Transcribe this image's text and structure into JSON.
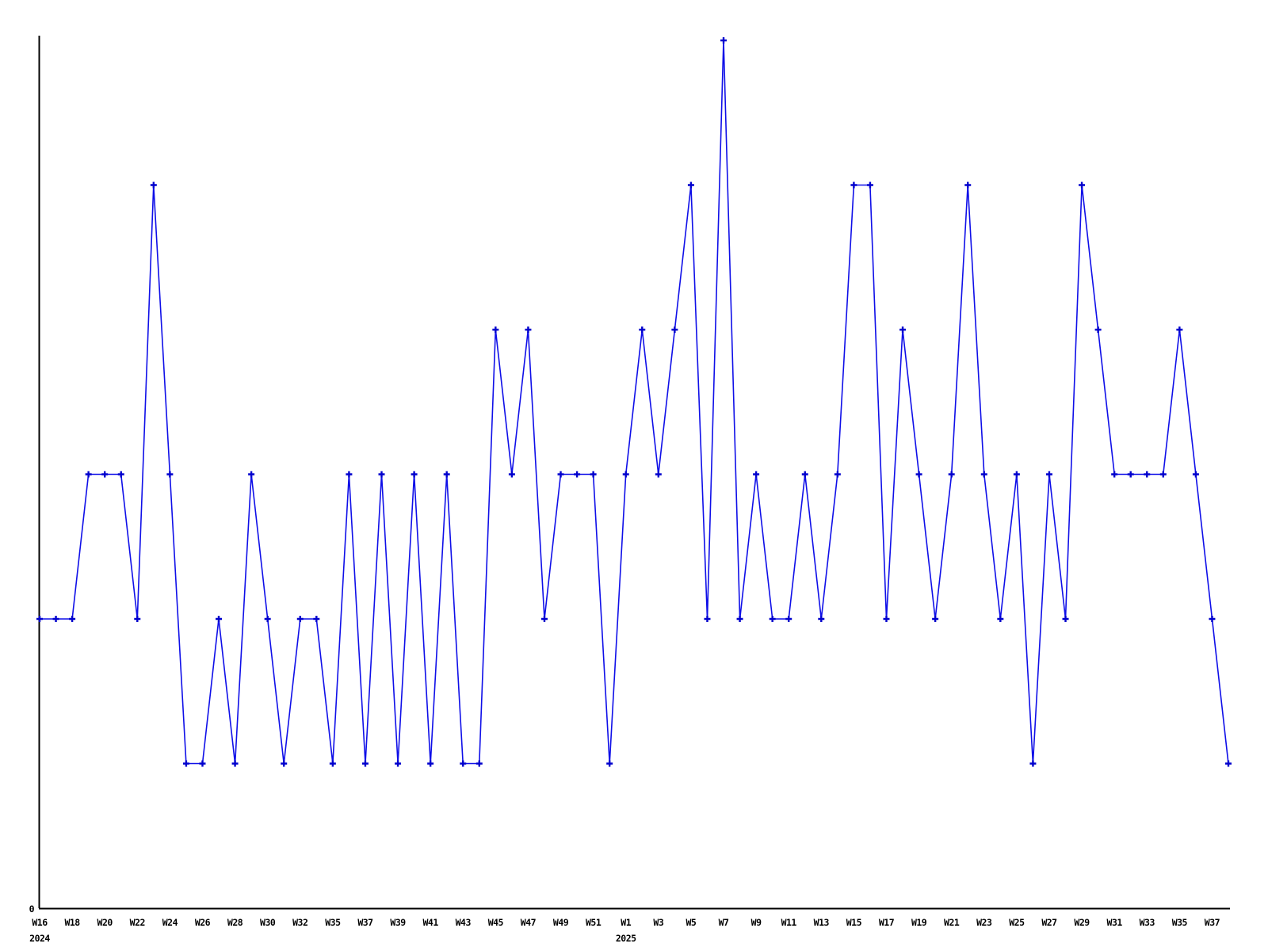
{
  "chart_data": {
    "type": "line",
    "title": "",
    "legend": [],
    "grid": false,
    "background_color": "#ffffff",
    "line_color": "#0f0fe8",
    "marker_color": "#0000cd",
    "marker_style": "plus",
    "axis_color": "#000000",
    "label_color": "#000000",
    "y_axis": {
      "ticks": [
        "0"
      ],
      "origin_label": "0",
      "ylim": [
        0,
        6.1
      ]
    },
    "x_axis": {
      "tick_every_n_points": 2,
      "tick_labels": [
        "W16",
        "W18",
        "W20",
        "W22",
        "W24",
        "W26",
        "W28",
        "W30",
        "W32",
        "W35",
        "W37",
        "W39",
        "W41",
        "W43",
        "W45",
        "W47",
        "W49",
        "W51",
        "W1",
        "W3",
        "W5",
        "W7",
        "W9",
        "W11",
        "W13",
        "W15",
        "W17",
        "W19",
        "W21",
        "W23",
        "W25",
        "W27",
        "W29",
        "W31",
        "W33",
        "W35",
        "W37"
      ],
      "year_labels": [
        {
          "label": "2024",
          "point_index": 0
        },
        {
          "label": "2025",
          "point_index": 36
        }
      ]
    },
    "series": [
      {
        "name": "weekly-count",
        "points": [
          {
            "year": 2024,
            "week": "W16",
            "value": 2
          },
          {
            "year": 2024,
            "week": "W17",
            "value": 2
          },
          {
            "year": 2024,
            "week": "W18",
            "value": 2
          },
          {
            "year": 2024,
            "week": "W19",
            "value": 3
          },
          {
            "year": 2024,
            "week": "W20",
            "value": 3
          },
          {
            "year": 2024,
            "week": "W21",
            "value": 3
          },
          {
            "year": 2024,
            "week": "W22",
            "value": 2
          },
          {
            "year": 2024,
            "week": "W23",
            "value": 5
          },
          {
            "year": 2024,
            "week": "W24",
            "value": 3
          },
          {
            "year": 2024,
            "week": "W25",
            "value": 1
          },
          {
            "year": 2024,
            "week": "W26",
            "value": 1
          },
          {
            "year": 2024,
            "week": "W27",
            "value": 2
          },
          {
            "year": 2024,
            "week": "W28",
            "value": 1
          },
          {
            "year": 2024,
            "week": "W29",
            "value": 3
          },
          {
            "year": 2024,
            "week": "W30",
            "value": 2
          },
          {
            "year": 2024,
            "week": "W31",
            "value": 1
          },
          {
            "year": 2024,
            "week": "W32",
            "value": 2
          },
          {
            "year": 2024,
            "week": "W33",
            "value": 2
          },
          {
            "year": 2024,
            "week": "W35",
            "value": 1
          },
          {
            "year": 2024,
            "week": "W36",
            "value": 3
          },
          {
            "year": 2024,
            "week": "W37",
            "value": 1
          },
          {
            "year": 2024,
            "week": "W38",
            "value": 3
          },
          {
            "year": 2024,
            "week": "W39",
            "value": 1
          },
          {
            "year": 2024,
            "week": "W40",
            "value": 3
          },
          {
            "year": 2024,
            "week": "W41",
            "value": 1
          },
          {
            "year": 2024,
            "week": "W42",
            "value": 3
          },
          {
            "year": 2024,
            "week": "W43",
            "value": 1
          },
          {
            "year": 2024,
            "week": "W44",
            "value": 1
          },
          {
            "year": 2024,
            "week": "W45",
            "value": 4
          },
          {
            "year": 2024,
            "week": "W46",
            "value": 3
          },
          {
            "year": 2024,
            "week": "W47",
            "value": 4
          },
          {
            "year": 2024,
            "week": "W48",
            "value": 2
          },
          {
            "year": 2024,
            "week": "W49",
            "value": 3
          },
          {
            "year": 2024,
            "week": "W50",
            "value": 3
          },
          {
            "year": 2024,
            "week": "W51",
            "value": 3
          },
          {
            "year": 2024,
            "week": "W52",
            "value": 1
          },
          {
            "year": 2025,
            "week": "W1",
            "value": 3
          },
          {
            "year": 2025,
            "week": "W2",
            "value": 4
          },
          {
            "year": 2025,
            "week": "W3",
            "value": 3
          },
          {
            "year": 2025,
            "week": "W4",
            "value": 4
          },
          {
            "year": 2025,
            "week": "W5",
            "value": 5
          },
          {
            "year": 2025,
            "week": "W6",
            "value": 2
          },
          {
            "year": 2025,
            "week": "W7",
            "value": 6
          },
          {
            "year": 2025,
            "week": "W8",
            "value": 2
          },
          {
            "year": 2025,
            "week": "W9",
            "value": 3
          },
          {
            "year": 2025,
            "week": "W10",
            "value": 2
          },
          {
            "year": 2025,
            "week": "W11",
            "value": 2
          },
          {
            "year": 2025,
            "week": "W12",
            "value": 3
          },
          {
            "year": 2025,
            "week": "W13",
            "value": 2
          },
          {
            "year": 2025,
            "week": "W14",
            "value": 3
          },
          {
            "year": 2025,
            "week": "W15",
            "value": 5
          },
          {
            "year": 2025,
            "week": "W16",
            "value": 5
          },
          {
            "year": 2025,
            "week": "W17",
            "value": 2
          },
          {
            "year": 2025,
            "week": "W18",
            "value": 4
          },
          {
            "year": 2025,
            "week": "W19",
            "value": 3
          },
          {
            "year": 2025,
            "week": "W20",
            "value": 2
          },
          {
            "year": 2025,
            "week": "W21",
            "value": 3
          },
          {
            "year": 2025,
            "week": "W22",
            "value": 5
          },
          {
            "year": 2025,
            "week": "W23",
            "value": 3
          },
          {
            "year": 2025,
            "week": "W24",
            "value": 2
          },
          {
            "year": 2025,
            "week": "W25",
            "value": 3
          },
          {
            "year": 2025,
            "week": "W26",
            "value": 1
          },
          {
            "year": 2025,
            "week": "W27",
            "value": 3
          },
          {
            "year": 2025,
            "week": "W28",
            "value": 2
          },
          {
            "year": 2025,
            "week": "W29",
            "value": 5
          },
          {
            "year": 2025,
            "week": "W30",
            "value": 4
          },
          {
            "year": 2025,
            "week": "W31",
            "value": 3
          },
          {
            "year": 2025,
            "week": "W32",
            "value": 3
          },
          {
            "year": 2025,
            "week": "W33",
            "value": 3
          },
          {
            "year": 2025,
            "week": "W34",
            "value": 3
          },
          {
            "year": 2025,
            "week": "W35",
            "value": 4
          },
          {
            "year": 2025,
            "week": "W36",
            "value": 3
          },
          {
            "year": 2025,
            "week": "W37",
            "value": 2
          },
          {
            "year": 2025,
            "week": "W38",
            "value": 1
          }
        ]
      }
    ]
  }
}
